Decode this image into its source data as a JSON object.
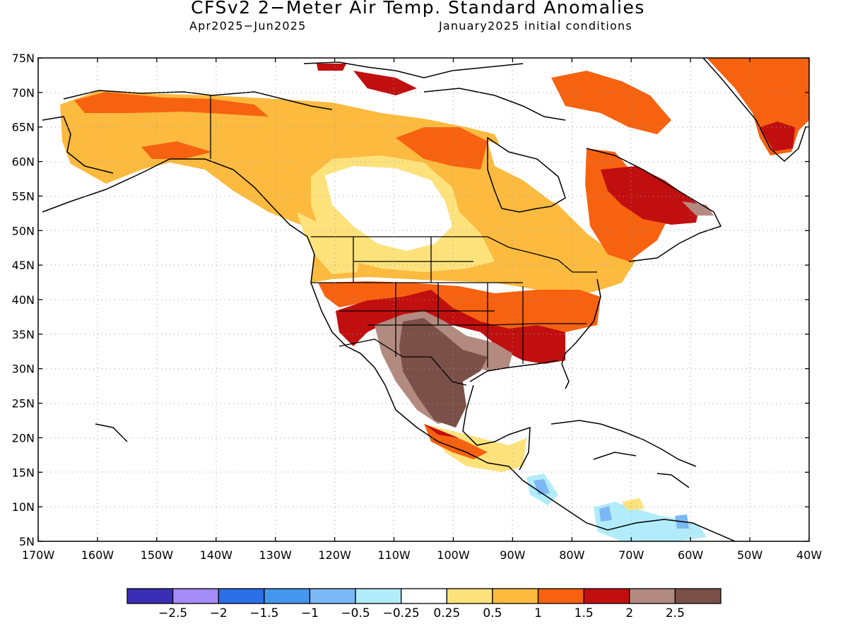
{
  "title": "CFSv2 2−Meter Air Temp. Standard Anomalies",
  "subtitle_period": "Apr2025−Jun2025",
  "subtitle_init": "January2025 initial conditions",
  "lat_labels": [
    "75N",
    "70N",
    "65N",
    "60N",
    "55N",
    "50N",
    "45N",
    "40N",
    "35N",
    "30N",
    "25N",
    "20N",
    "15N",
    "10N",
    "5N"
  ],
  "lon_labels": [
    "170W",
    "160W",
    "150W",
    "140W",
    "130W",
    "120W",
    "110W",
    "100W",
    "90W",
    "80W",
    "70W",
    "60W",
    "50W",
    "40W"
  ],
  "colorbar": {
    "colors": [
      "#3a2fb4",
      "#a38cf5",
      "#2a6ee8",
      "#4596ee",
      "#7cb8f5",
      "#b2ecfa",
      "#ffffff",
      "#fde27c",
      "#fcba3f",
      "#f66210",
      "#c10f0f",
      "#b38a80",
      "#7a5048"
    ],
    "labels": [
      "−2.5",
      "−2",
      "−1.5",
      "−1",
      "−0.5",
      "−0.25",
      "0.25",
      "0.5",
      "1",
      "1.5",
      "2",
      "2.5"
    ]
  }
}
